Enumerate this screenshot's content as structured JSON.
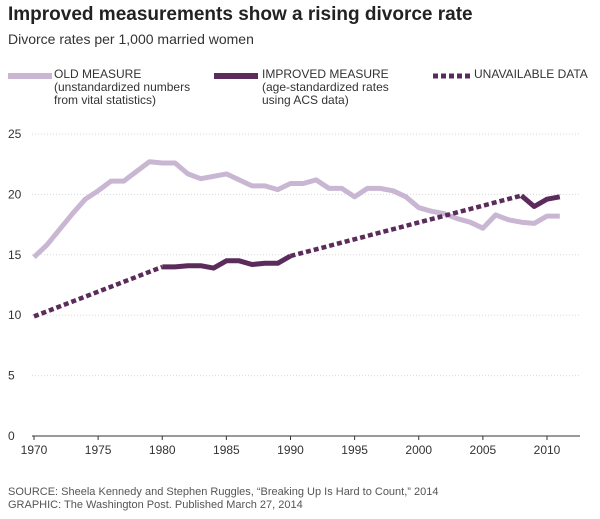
{
  "header": {
    "title": "Improved measurements show a rising divorce rate",
    "subtitle": "Divorce rates per 1,000 married women"
  },
  "legend": [
    {
      "lines": [
        "OLD MEASURE",
        "(unstandardized numbers",
        "from vital statistics)"
      ],
      "color": "#c9b6d2",
      "style": "solid"
    },
    {
      "lines": [
        "IMPROVED MEASURE",
        "(age-standardized rates",
        "using ACS data)"
      ],
      "color": "#5b2c5b",
      "style": "solid"
    },
    {
      "lines": [
        "UNAVAILABLE DATA"
      ],
      "color": "#5b2c5b",
      "style": "dotted"
    }
  ],
  "footer": {
    "source": "SOURCE: Sheela Kennedy and Stephen Ruggles, “Breaking Up Is Hard to Count,” 2014",
    "graphic": "GRAPHIC: The Washington Post. Published March 27, 2014"
  },
  "chart_data": {
    "type": "line",
    "title": "Improved measurements show a rising divorce rate",
    "subtitle": "Divorce rates per 1,000 married women",
    "xlim": [
      1970,
      2012
    ],
    "ylim": [
      0,
      25
    ],
    "xticks": [
      1970,
      1975,
      1980,
      1985,
      1990,
      1995,
      2000,
      2005,
      2010
    ],
    "yticks": [
      0,
      5,
      10,
      15,
      20,
      25
    ],
    "grid": true,
    "legend_position": "top",
    "series": [
      {
        "name": "OLD MEASURE",
        "color": "#c9b6d2",
        "style": "solid",
        "x": [
          1970,
          1971,
          1972,
          1973,
          1974,
          1975,
          1976,
          1977,
          1978,
          1979,
          1980,
          1981,
          1982,
          1983,
          1984,
          1985,
          1986,
          1987,
          1988,
          1989,
          1990,
          1991,
          1992,
          1993,
          1994,
          1995,
          1996,
          1997,
          1998,
          1999,
          2000,
          2001,
          2002,
          2003,
          2004,
          2005,
          2006,
          2007,
          2008,
          2009,
          2010,
          2011
        ],
        "y": [
          14.8,
          15.8,
          17.1,
          18.4,
          19.6,
          20.3,
          21.1,
          21.1,
          21.9,
          22.7,
          22.6,
          22.6,
          21.7,
          21.3,
          21.5,
          21.7,
          21.2,
          20.7,
          20.7,
          20.4,
          20.9,
          20.9,
          21.2,
          20.5,
          20.5,
          19.8,
          20.5,
          20.5,
          20.3,
          19.8,
          18.9,
          18.6,
          18.4,
          18.0,
          17.7,
          17.2,
          18.3,
          17.9,
          17.7,
          17.6,
          18.2,
          18.2
        ]
      },
      {
        "name": "IMPROVED MEASURE",
        "color": "#5b2c5b",
        "style": "solid",
        "segments": [
          {
            "x": [
              1980,
              1981,
              1982,
              1983,
              1984,
              1985,
              1986,
              1987,
              1988,
              1989,
              1990
            ],
            "y": [
              14.0,
              14.0,
              14.1,
              14.1,
              13.9,
              14.5,
              14.5,
              14.2,
              14.3,
              14.3,
              14.9
            ]
          },
          {
            "x": [
              2008,
              2009,
              2010,
              2011
            ],
            "y": [
              19.9,
              19.0,
              19.6,
              19.8
            ]
          }
        ]
      },
      {
        "name": "UNAVAILABLE DATA",
        "color": "#5b2c5b",
        "style": "dotted",
        "segments": [
          {
            "x": [
              1970,
              1980
            ],
            "y": [
              9.9,
              14.0
            ]
          },
          {
            "x": [
              1990,
              2008
            ],
            "y": [
              14.9,
              19.9
            ]
          }
        ]
      }
    ]
  }
}
